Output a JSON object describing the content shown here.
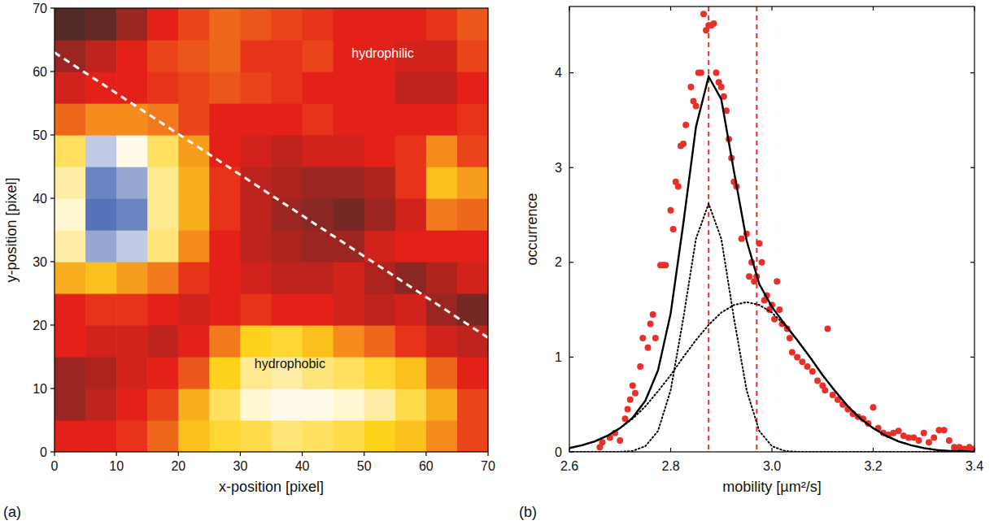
{
  "chart_data": [
    {
      "type": "heatmap",
      "panel": "(a)",
      "xlabel": "x-position [pixel]",
      "ylabel": "y-position [pixel]",
      "xlim": [
        0,
        70
      ],
      "ylim": [
        0,
        70
      ],
      "xticks": [
        0,
        10,
        20,
        30,
        40,
        50,
        60,
        70
      ],
      "yticks": [
        0,
        10,
        20,
        30,
        40,
        50,
        60,
        70
      ],
      "zlim": [
        0,
        4
      ],
      "cells": [
        [
          1.0,
          1.0,
          1.1,
          1.4,
          1.9,
          2.1,
          2.2,
          2.4,
          2.3,
          2.2,
          2.0,
          1.9,
          1.6,
          1.2
        ],
        [
          0.6,
          0.8,
          1.0,
          1.2,
          1.8,
          2.3,
          2.8,
          2.9,
          2.9,
          2.8,
          2.6,
          2.2,
          1.8,
          1.2
        ],
        [
          0.6,
          0.7,
          0.9,
          1.0,
          1.3,
          2.0,
          2.5,
          2.6,
          2.4,
          2.3,
          2.1,
          1.9,
          1.4,
          1.0
        ],
        [
          1.0,
          0.9,
          0.9,
          0.8,
          1.0,
          1.5,
          2.0,
          2.1,
          1.9,
          1.6,
          1.4,
          1.1,
          0.9,
          0.8
        ],
        [
          1.0,
          1.1,
          1.1,
          1.0,
          0.9,
          1.0,
          1.1,
          1.0,
          1.0,
          0.9,
          0.8,
          0.9,
          0.6,
          0.4
        ],
        [
          1.8,
          1.9,
          1.7,
          1.5,
          1.1,
          1.0,
          0.9,
          0.8,
          0.8,
          0.9,
          0.7,
          0.5,
          0.7,
          0.9
        ],
        [
          2.6,
          3.5,
          3.3,
          2.4,
          1.6,
          1.0,
          0.8,
          0.7,
          0.6,
          0.6,
          0.9,
          1.0,
          1.0,
          1.0
        ],
        [
          2.8,
          3.8,
          3.7,
          2.5,
          1.8,
          1.1,
          0.8,
          0.6,
          0.5,
          0.4,
          0.6,
          0.9,
          1.5,
          1.4
        ],
        [
          2.6,
          3.7,
          3.5,
          2.5,
          1.8,
          1.1,
          0.8,
          0.7,
          0.6,
          0.6,
          0.7,
          1.1,
          1.9,
          1.7
        ],
        [
          2.3,
          3.3,
          2.9,
          2.3,
          1.7,
          1.0,
          0.9,
          0.8,
          0.9,
          0.9,
          1.0,
          1.1,
          1.6,
          1.2
        ],
        [
          1.4,
          1.6,
          1.6,
          1.5,
          1.2,
          1.0,
          1.0,
          1.0,
          1.1,
          1.0,
          1.0,
          1.0,
          1.0,
          1.1
        ],
        [
          0.9,
          1.0,
          1.0,
          1.1,
          1.2,
          1.3,
          1.2,
          1.1,
          1.0,
          1.0,
          1.0,
          0.8,
          0.8,
          1.0
        ],
        [
          0.6,
          0.8,
          1.0,
          1.2,
          1.3,
          1.4,
          1.1,
          1.1,
          1.2,
          1.0,
          1.0,
          0.9,
          0.9,
          1.2
        ],
        [
          0.2,
          0.3,
          0.6,
          1.0,
          1.2,
          1.4,
          1.3,
          1.2,
          1.1,
          1.0,
          1.0,
          1.0,
          1.1,
          1.3
        ]
      ],
      "line": {
        "x": [
          0,
          70
        ],
        "y": [
          63,
          18
        ]
      },
      "annotations": [
        {
          "text": "hydrophilic",
          "x": 53,
          "y": 63
        },
        {
          "text": "hydrophobic",
          "x": 38,
          "y": 14
        }
      ]
    },
    {
      "type": "scatter",
      "panel": "(b)",
      "xlabel": "mobility [µm²/s]",
      "ylabel": "occurrence",
      "xlim": [
        2.6,
        3.4
      ],
      "ylim": [
        0,
        4.7
      ],
      "xticks": [
        2.6,
        2.8,
        {
          "value": 3,
          "label": "3.0"
        },
        3.2,
        3.4
      ],
      "yticks": [
        0,
        1,
        2,
        3,
        4
      ],
      "vlines": [
        2.875,
        2.97
      ],
      "series": [
        {
          "type": "scatter",
          "marker": "circle",
          "color": "#e8302a",
          "x": [
            2.66,
            2.665,
            2.68,
            2.69,
            2.7,
            2.71,
            2.715,
            2.72,
            2.725,
            2.73,
            2.74,
            2.745,
            2.755,
            2.76,
            2.765,
            2.77,
            2.78,
            2.785,
            2.79,
            2.8,
            2.805,
            2.81,
            2.815,
            2.82,
            2.825,
            2.83,
            2.84,
            2.845,
            2.85,
            2.855,
            2.86,
            2.865,
            2.87,
            2.875,
            2.88,
            2.885,
            2.89,
            2.895,
            2.9,
            2.905,
            2.91,
            2.915,
            2.92,
            2.925,
            2.93,
            2.94,
            2.95,
            2.955,
            2.96,
            2.965,
            2.97,
            2.975,
            2.98,
            2.985,
            2.99,
            2.995,
            3.0,
            3.005,
            3.01,
            3.015,
            3.02,
            3.03,
            3.035,
            3.04,
            3.05,
            3.06,
            3.07,
            3.08,
            3.09,
            3.1,
            3.105,
            3.11,
            3.12,
            3.13,
            3.14,
            3.15,
            3.16,
            3.17,
            3.18,
            3.19,
            3.2,
            3.21,
            3.22,
            3.23,
            3.24,
            3.25,
            3.26,
            3.27,
            3.28,
            3.29,
            3.3,
            3.31,
            3.32,
            3.33,
            3.34,
            3.35,
            3.36,
            3.37,
            3.38,
            3.39,
            3.4
          ],
          "values": [
            0.05,
            0.1,
            0.15,
            0.2,
            0.12,
            0.35,
            0.45,
            0.55,
            0.7,
            0.62,
            0.9,
            1.2,
            1.1,
            1.35,
            1.45,
            1.2,
            1.97,
            1.97,
            1.97,
            2.55,
            2.35,
            2.85,
            2.8,
            3.23,
            3.25,
            3.45,
            3.85,
            3.7,
            3.65,
            4.0,
            4.0,
            4.62,
            4.45,
            4.5,
            4.5,
            4.52,
            4.0,
            3.9,
            3.85,
            3.75,
            3.6,
            3.3,
            3.1,
            2.85,
            2.8,
            2.25,
            2.3,
            1.85,
            2.0,
            1.8,
            1.85,
            2.2,
            2.0,
            1.6,
            1.65,
            1.5,
            1.55,
            1.4,
            1.8,
            1.5,
            1.35,
            1.3,
            1.2,
            1.05,
            1.0,
            0.95,
            0.9,
            0.85,
            0.75,
            0.7,
            0.65,
            1.3,
            0.6,
            0.55,
            0.5,
            0.45,
            0.4,
            0.37,
            0.35,
            0.3,
            0.47,
            0.25,
            0.2,
            0.18,
            0.2,
            0.22,
            0.17,
            0.15,
            0.15,
            0.12,
            0.2,
            0.1,
            0.15,
            0.23,
            0.23,
            0.12,
            0.05,
            0.05,
            0.03,
            0.05,
            0.03
          ]
        },
        {
          "type": "line",
          "line_style": "solid",
          "color": "#000000",
          "x": [
            2.6,
            2.625,
            2.65,
            2.675,
            2.7,
            2.725,
            2.75,
            2.775,
            2.8,
            2.825,
            2.85,
            2.875,
            2.9,
            2.925,
            2.95,
            2.975,
            3.0,
            3.025,
            3.05,
            3.075,
            3.1,
            3.125,
            3.15,
            3.175,
            3.2,
            3.225,
            3.25,
            3.275,
            3.3,
            3.325,
            3.35,
            3.375,
            3.4
          ],
          "values": [
            0.04,
            0.07,
            0.11,
            0.17,
            0.25,
            0.36,
            0.54,
            0.86,
            1.46,
            2.41,
            3.43,
            3.96,
            3.72,
            2.96,
            2.23,
            1.77,
            1.53,
            1.35,
            1.18,
            1.0,
            0.81,
            0.64,
            0.48,
            0.35,
            0.25,
            0.17,
            0.11,
            0.07,
            0.04,
            0.02,
            0.01,
            0.01,
            0.0
          ]
        },
        {
          "type": "line",
          "line_style": "dotted",
          "color": "#000000",
          "x": [
            2.6,
            2.625,
            2.65,
            2.675,
            2.7,
            2.725,
            2.75,
            2.775,
            2.8,
            2.825,
            2.85,
            2.875,
            2.9,
            2.925,
            2.95,
            2.975,
            3.0,
            3.025,
            3.05,
            3.075,
            3.1,
            3.125,
            3.15,
            3.175,
            3.2,
            3.225,
            3.25,
            3.275,
            3.3,
            3.325,
            3.35,
            3.375,
            3.4
          ],
          "values": [
            0,
            0,
            0,
            0,
            0,
            0.01,
            0.06,
            0.22,
            0.65,
            1.41,
            2.25,
            2.62,
            2.25,
            1.41,
            0.65,
            0.22,
            0.06,
            0.01,
            0,
            0,
            0,
            0,
            0,
            0,
            0,
            0,
            0,
            0,
            0,
            0,
            0,
            0,
            0
          ]
        },
        {
          "type": "line",
          "line_style": "dotted",
          "color": "#000000",
          "x": [
            2.6,
            2.625,
            2.65,
            2.675,
            2.7,
            2.725,
            2.75,
            2.775,
            2.8,
            2.825,
            2.85,
            2.875,
            2.9,
            2.925,
            2.95,
            2.975,
            3.0,
            3.025,
            3.05,
            3.075,
            3.1,
            3.125,
            3.15,
            3.175,
            3.2,
            3.225,
            3.25,
            3.275,
            3.3,
            3.325,
            3.35,
            3.375,
            3.4
          ],
          "values": [
            0.04,
            0.07,
            0.11,
            0.17,
            0.25,
            0.35,
            0.48,
            0.64,
            0.81,
            1.0,
            1.18,
            1.34,
            1.47,
            1.55,
            1.58,
            1.55,
            1.47,
            1.34,
            1.18,
            1.0,
            0.81,
            0.64,
            0.48,
            0.35,
            0.25,
            0.17,
            0.11,
            0.07,
            0.04,
            0.02,
            0.01,
            0.01,
            0.0
          ]
        }
      ]
    }
  ]
}
